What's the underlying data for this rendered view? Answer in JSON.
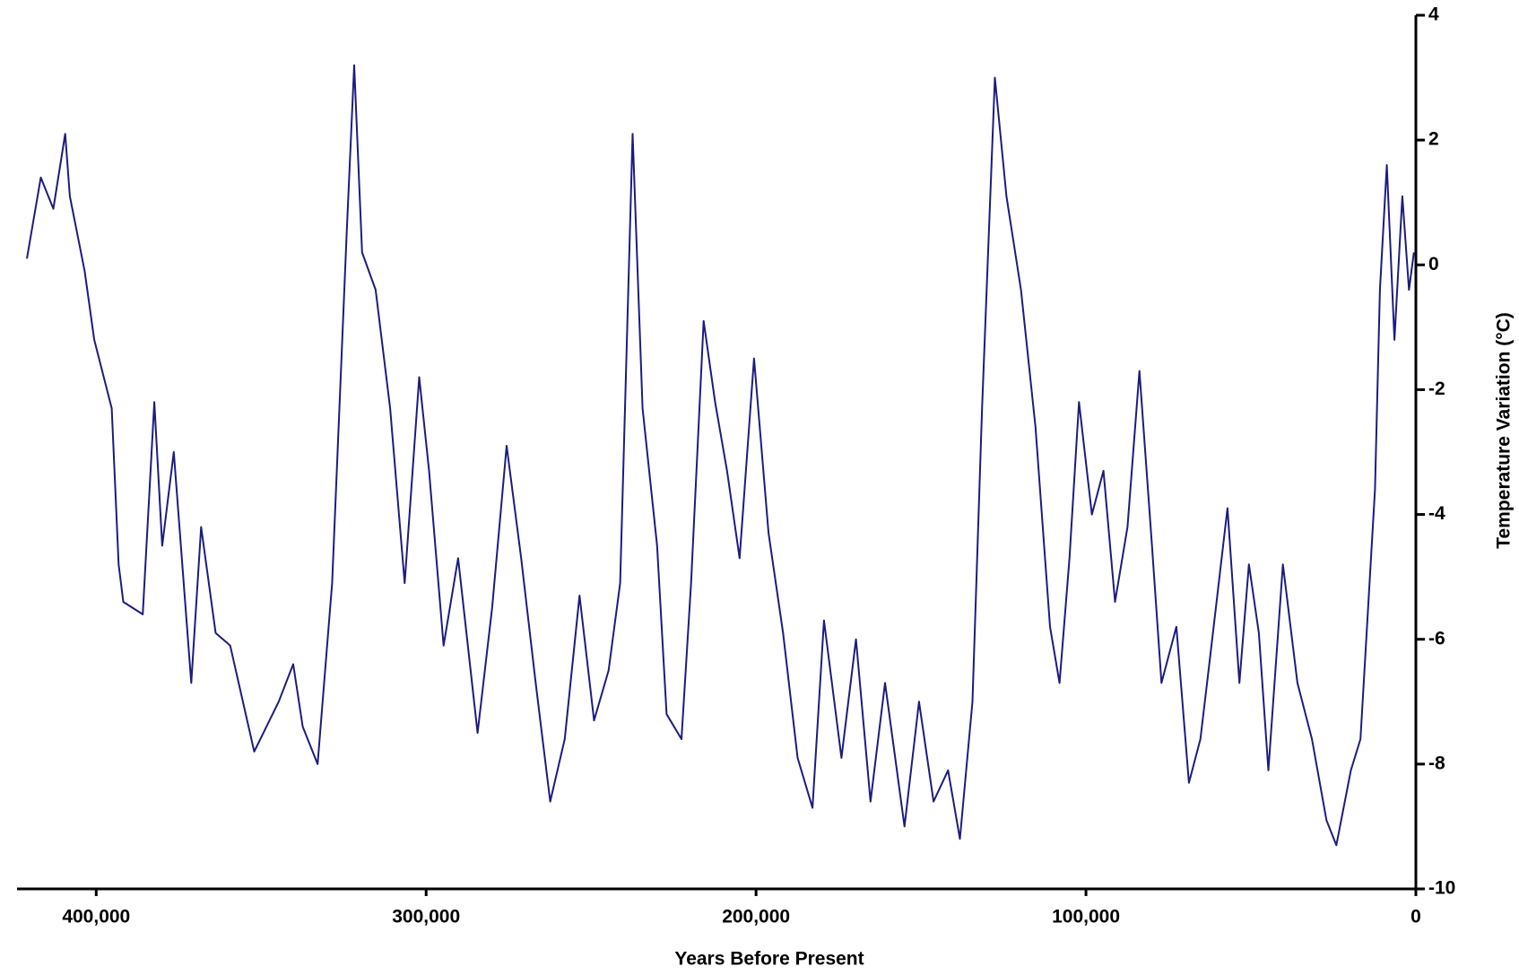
{
  "chart_data": {
    "type": "line",
    "x_label": "Years Before Present",
    "y_label": "Temperature Variation (°C)",
    "color": "#1c1c80",
    "xlim": [
      424000,
      0
    ],
    "xticks": [
      {
        "value": 400000,
        "label": "400,000"
      },
      {
        "value": 300000,
        "label": "300,000"
      },
      {
        "value": 200000,
        "label": "200,000"
      },
      {
        "value": 100000,
        "label": "100,000"
      },
      0
    ],
    "ylim": [
      -10,
      4
    ],
    "yticks": [
      -10,
      -8,
      -6,
      -4,
      -2,
      0,
      2,
      4
    ],
    "x": [
      421000,
      416800,
      413000,
      409400,
      408000,
      403500,
      400600,
      395300,
      393200,
      391800,
      385900,
      382400,
      380000,
      376500,
      371200,
      368200,
      363800,
      359400,
      352100,
      344700,
      340300,
      337400,
      332900,
      328500,
      324100,
      321800,
      319400,
      315300,
      310900,
      306500,
      302100,
      299100,
      294700,
      290300,
      284400,
      280000,
      275600,
      271200,
      266800,
      262400,
      258000,
      253500,
      249100,
      244700,
      241200,
      237400,
      234400,
      230000,
      227100,
      222600,
      219700,
      215900,
      212400,
      208800,
      205000,
      200600,
      196200,
      191800,
      187400,
      182900,
      179400,
      174100,
      169700,
      165300,
      160900,
      155000,
      150600,
      146200,
      141800,
      138200,
      134400,
      131500,
      127600,
      124100,
      119700,
      115300,
      110900,
      108000,
      105000,
      102100,
      98200,
      94700,
      91200,
      87400,
      83800,
      80000,
      77100,
      72600,
      68800,
      65300,
      62400,
      57100,
      53500,
      50600,
      47600,
      44700,
      40300,
      35900,
      31500,
      27100,
      24100,
      19700,
      16800,
      12400,
      10900,
      8800,
      6500,
      4100,
      2100,
      600
    ],
    "values": [
      0.1,
      1.4,
      0.9,
      2.1,
      1.1,
      -0.1,
      -1.2,
      -2.3,
      -4.8,
      -5.4,
      -5.6,
      -2.2,
      -4.5,
      -3.0,
      -6.7,
      -4.2,
      -5.9,
      -6.1,
      -7.8,
      -7.0,
      -6.4,
      -7.4,
      -8.0,
      -5.1,
      0.5,
      3.2,
      0.2,
      -0.4,
      -2.3,
      -5.1,
      -1.8,
      -3.3,
      -6.1,
      -4.7,
      -7.5,
      -5.5,
      -2.9,
      -4.7,
      -6.7,
      -8.6,
      -7.6,
      -5.3,
      -7.3,
      -6.5,
      -5.1,
      2.1,
      -2.3,
      -4.5,
      -7.2,
      -7.6,
      -5.1,
      -0.9,
      -2.2,
      -3.3,
      -4.7,
      -1.5,
      -4.3,
      -5.9,
      -7.9,
      -8.7,
      -5.7,
      -7.9,
      -6.0,
      -8.6,
      -6.7,
      -9.0,
      -7.0,
      -8.6,
      -8.1,
      -9.2,
      -7.0,
      -2.3,
      3.0,
      1.1,
      -0.4,
      -2.6,
      -5.8,
      -6.7,
      -4.7,
      -2.2,
      -4.0,
      -3.3,
      -5.4,
      -4.2,
      -1.7,
      -4.5,
      -6.7,
      -5.8,
      -8.3,
      -7.6,
      -6.3,
      -3.9,
      -6.7,
      -4.8,
      -5.9,
      -8.1,
      -4.8,
      -6.7,
      -7.6,
      -8.9,
      -9.3,
      -8.1,
      -7.6,
      -3.6,
      -0.4,
      1.6,
      -1.2,
      1.1,
      -0.4,
      0.2
    ]
  }
}
